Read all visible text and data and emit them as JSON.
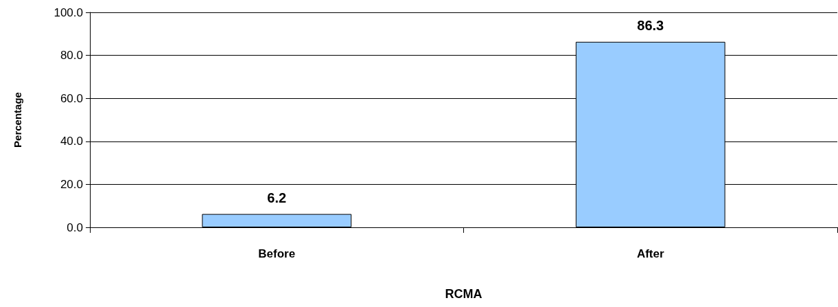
{
  "chart_data": {
    "type": "bar",
    "xlabel": "RCMA",
    "ylabel": "Percentage",
    "categories": [
      "Before",
      "After"
    ],
    "values": [
      6.2,
      86.3
    ],
    "color": "#99ccff",
    "ylim": [
      0,
      100
    ],
    "yticks": [
      {
        "value": 0,
        "label": "0.0"
      },
      {
        "value": 20,
        "label": "20.0"
      },
      {
        "value": 40,
        "label": "40.0"
      },
      {
        "value": 60,
        "label": "60.0"
      },
      {
        "value": 80,
        "label": "80.0"
      },
      {
        "value": 100,
        "label": "100.0"
      }
    ],
    "grid": "y",
    "data_labels": true
  }
}
